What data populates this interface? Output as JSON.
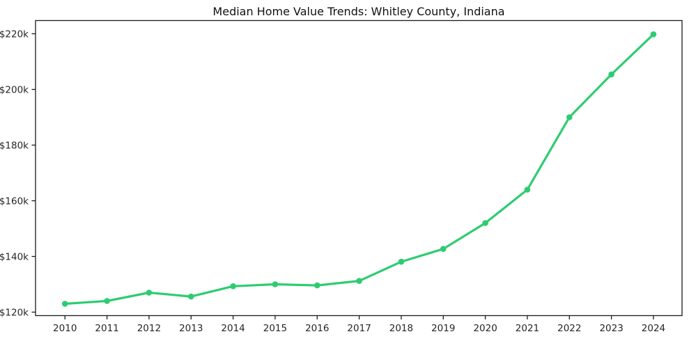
{
  "chart_data": {
    "type": "line",
    "title": "Median Home Value Trends: Whitley County, Indiana",
    "x": [
      2010,
      2011,
      2012,
      2013,
      2014,
      2015,
      2016,
      2017,
      2018,
      2019,
      2020,
      2021,
      2022,
      2023,
      2024
    ],
    "values": [
      123000,
      124000,
      127000,
      125600,
      129300,
      130000,
      129600,
      131200,
      138100,
      142700,
      152000,
      164000,
      190000,
      205400,
      219800
    ],
    "xlabel": "",
    "ylabel": "",
    "xlim": [
      2009.3,
      2024.68
    ],
    "ylim": [
      118750,
      224750
    ],
    "x_ticks": [
      {
        "value": 2010,
        "label": "2010"
      },
      {
        "value": 2011,
        "label": "2011"
      },
      {
        "value": 2012,
        "label": "2012"
      },
      {
        "value": 2013,
        "label": "2013"
      },
      {
        "value": 2014,
        "label": "2014"
      },
      {
        "value": 2015,
        "label": "2015"
      },
      {
        "value": 2016,
        "label": "2016"
      },
      {
        "value": 2017,
        "label": "2017"
      },
      {
        "value": 2018,
        "label": "2018"
      },
      {
        "value": 2019,
        "label": "2019"
      },
      {
        "value": 2020,
        "label": "2020"
      },
      {
        "value": 2021,
        "label": "2021"
      },
      {
        "value": 2022,
        "label": "2022"
      },
      {
        "value": 2023,
        "label": "2023"
      },
      {
        "value": 2024,
        "label": "2024"
      }
    ],
    "y_ticks": [
      {
        "value": 120000,
        "label": "$120k"
      },
      {
        "value": 140000,
        "label": "$140k"
      },
      {
        "value": 160000,
        "label": "$160k"
      },
      {
        "value": 180000,
        "label": "$180k"
      },
      {
        "value": 200000,
        "label": "$200k"
      },
      {
        "value": 220000,
        "label": "$220k"
      }
    ],
    "grid": false,
    "legend": null,
    "line_color": "#2ecc71",
    "marker": "circle",
    "spine_color": "#1a1a1a",
    "background": "#ffffff"
  }
}
